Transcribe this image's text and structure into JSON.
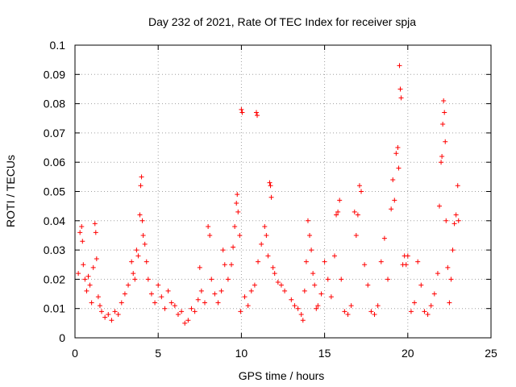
{
  "chart_data": {
    "type": "scatter",
    "title": "Day 232 of 2021, Rate Of TEC Index for receiver spja",
    "xlabel": "GPS time / hours",
    "ylabel": "ROTI / TECUs",
    "xlim": [
      0,
      25
    ],
    "ylim": [
      0,
      0.1
    ],
    "xticks": [
      0,
      5,
      10,
      15,
      20,
      25
    ],
    "xtick_labels": [
      "0",
      "5",
      "10",
      "15",
      "20",
      "25"
    ],
    "yticks": [
      0,
      0.01,
      0.02,
      0.03,
      0.04,
      0.05,
      0.06,
      0.07,
      0.08,
      0.09,
      0.1
    ],
    "ytick_labels": [
      "0",
      "0.01",
      "0.02",
      "0.03",
      "0.04",
      "0.05",
      "0.06",
      "0.07",
      "0.08",
      "0.09",
      "0.1"
    ],
    "grid": true,
    "marker": "+",
    "color": "#ff0000",
    "series": [
      {
        "name": "ROTI",
        "points": [
          [
            0.2,
            0.022
          ],
          [
            0.3,
            0.036
          ],
          [
            0.4,
            0.038
          ],
          [
            0.45,
            0.033
          ],
          [
            0.5,
            0.025
          ],
          [
            0.6,
            0.02
          ],
          [
            0.7,
            0.016
          ],
          [
            0.8,
            0.021
          ],
          [
            0.9,
            0.018
          ],
          [
            1.0,
            0.012
          ],
          [
            1.1,
            0.024
          ],
          [
            1.2,
            0.039
          ],
          [
            1.25,
            0.036
          ],
          [
            1.3,
            0.027
          ],
          [
            1.4,
            0.014
          ],
          [
            1.5,
            0.011
          ],
          [
            1.6,
            0.009
          ],
          [
            1.8,
            0.007
          ],
          [
            2.0,
            0.008
          ],
          [
            2.2,
            0.006
          ],
          [
            2.4,
            0.009
          ],
          [
            2.6,
            0.008
          ],
          [
            2.8,
            0.012
          ],
          [
            3.0,
            0.015
          ],
          [
            3.2,
            0.018
          ],
          [
            3.4,
            0.026
          ],
          [
            3.5,
            0.022
          ],
          [
            3.6,
            0.02
          ],
          [
            3.7,
            0.03
          ],
          [
            3.8,
            0.028
          ],
          [
            3.9,
            0.042
          ],
          [
            3.95,
            0.052
          ],
          [
            4.0,
            0.055
          ],
          [
            4.05,
            0.04
          ],
          [
            4.1,
            0.035
          ],
          [
            4.2,
            0.032
          ],
          [
            4.3,
            0.026
          ],
          [
            4.4,
            0.02
          ],
          [
            4.6,
            0.015
          ],
          [
            4.8,
            0.012
          ],
          [
            5.0,
            0.018
          ],
          [
            5.2,
            0.014
          ],
          [
            5.4,
            0.01
          ],
          [
            5.6,
            0.016
          ],
          [
            5.8,
            0.012
          ],
          [
            6.0,
            0.011
          ],
          [
            6.2,
            0.008
          ],
          [
            6.4,
            0.009
          ],
          [
            6.6,
            0.005
          ],
          [
            6.8,
            0.006
          ],
          [
            7.0,
            0.01
          ],
          [
            7.2,
            0.009
          ],
          [
            7.4,
            0.013
          ],
          [
            7.5,
            0.024
          ],
          [
            7.6,
            0.016
          ],
          [
            7.8,
            0.012
          ],
          [
            8.0,
            0.038
          ],
          [
            8.1,
            0.035
          ],
          [
            8.2,
            0.02
          ],
          [
            8.4,
            0.015
          ],
          [
            8.6,
            0.012
          ],
          [
            8.8,
            0.016
          ],
          [
            8.9,
            0.03
          ],
          [
            9.0,
            0.025
          ],
          [
            9.2,
            0.02
          ],
          [
            9.4,
            0.025
          ],
          [
            9.5,
            0.031
          ],
          [
            9.6,
            0.038
          ],
          [
            9.7,
            0.046
          ],
          [
            9.75,
            0.049
          ],
          [
            9.8,
            0.043
          ],
          [
            9.9,
            0.035
          ],
          [
            9.95,
            0.009
          ],
          [
            10.0,
            0.078
          ],
          [
            10.05,
            0.077
          ],
          [
            10.2,
            0.014
          ],
          [
            10.4,
            0.011
          ],
          [
            10.6,
            0.016
          ],
          [
            10.8,
            0.018
          ],
          [
            10.9,
            0.077
          ],
          [
            10.95,
            0.076
          ],
          [
            11.0,
            0.026
          ],
          [
            11.2,
            0.032
          ],
          [
            11.4,
            0.038
          ],
          [
            11.5,
            0.035
          ],
          [
            11.6,
            0.028
          ],
          [
            11.7,
            0.053
          ],
          [
            11.75,
            0.052
          ],
          [
            11.8,
            0.048
          ],
          [
            11.9,
            0.024
          ],
          [
            12.0,
            0.022
          ],
          [
            12.2,
            0.019
          ],
          [
            12.4,
            0.018
          ],
          [
            12.6,
            0.016
          ],
          [
            13.0,
            0.013
          ],
          [
            13.2,
            0.011
          ],
          [
            13.4,
            0.01
          ],
          [
            13.6,
            0.008
          ],
          [
            13.7,
            0.006
          ],
          [
            13.8,
            0.016
          ],
          [
            13.9,
            0.026
          ],
          [
            14.0,
            0.04
          ],
          [
            14.1,
            0.035
          ],
          [
            14.2,
            0.03
          ],
          [
            14.3,
            0.022
          ],
          [
            14.4,
            0.018
          ],
          [
            14.5,
            0.01
          ],
          [
            14.6,
            0.011
          ],
          [
            14.8,
            0.015
          ],
          [
            15.0,
            0.026
          ],
          [
            15.2,
            0.02
          ],
          [
            15.4,
            0.014
          ],
          [
            15.6,
            0.028
          ],
          [
            15.7,
            0.042
          ],
          [
            15.8,
            0.043
          ],
          [
            15.9,
            0.047
          ],
          [
            16.0,
            0.02
          ],
          [
            16.2,
            0.009
          ],
          [
            16.4,
            0.008
          ],
          [
            16.6,
            0.011
          ],
          [
            16.8,
            0.043
          ],
          [
            16.9,
            0.035
          ],
          [
            17.0,
            0.042
          ],
          [
            17.1,
            0.052
          ],
          [
            17.2,
            0.05
          ],
          [
            17.4,
            0.025
          ],
          [
            17.6,
            0.018
          ],
          [
            17.8,
            0.009
          ],
          [
            18.0,
            0.008
          ],
          [
            18.2,
            0.011
          ],
          [
            18.4,
            0.026
          ],
          [
            18.6,
            0.034
          ],
          [
            18.8,
            0.02
          ],
          [
            19.0,
            0.044
          ],
          [
            19.1,
            0.054
          ],
          [
            19.2,
            0.047
          ],
          [
            19.3,
            0.063
          ],
          [
            19.4,
            0.065
          ],
          [
            19.45,
            0.058
          ],
          [
            19.5,
            0.093
          ],
          [
            19.55,
            0.085
          ],
          [
            19.6,
            0.082
          ],
          [
            19.7,
            0.025
          ],
          [
            19.8,
            0.028
          ],
          [
            19.9,
            0.025
          ],
          [
            20.0,
            0.028
          ],
          [
            20.2,
            0.009
          ],
          [
            20.4,
            0.012
          ],
          [
            20.6,
            0.026
          ],
          [
            20.8,
            0.018
          ],
          [
            21.0,
            0.009
          ],
          [
            21.2,
            0.008
          ],
          [
            21.4,
            0.011
          ],
          [
            21.6,
            0.015
          ],
          [
            21.8,
            0.022
          ],
          [
            21.9,
            0.045
          ],
          [
            22.0,
            0.06
          ],
          [
            22.05,
            0.062
          ],
          [
            22.1,
            0.073
          ],
          [
            22.15,
            0.081
          ],
          [
            22.2,
            0.077
          ],
          [
            22.25,
            0.067
          ],
          [
            22.3,
            0.04
          ],
          [
            22.4,
            0.024
          ],
          [
            22.5,
            0.012
          ],
          [
            22.6,
            0.02
          ],
          [
            22.7,
            0.03
          ],
          [
            22.8,
            0.039
          ],
          [
            22.9,
            0.042
          ],
          [
            23.0,
            0.052
          ],
          [
            23.05,
            0.04
          ]
        ]
      }
    ]
  }
}
